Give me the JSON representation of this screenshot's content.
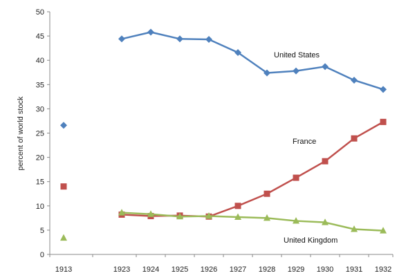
{
  "chart_data": {
    "type": "line",
    "ylabel": "percent of world stock",
    "ylim": [
      0,
      50
    ],
    "y_ticks": [
      0,
      5,
      10,
      15,
      20,
      25,
      30,
      35,
      40,
      45,
      50
    ],
    "x_ticks": [
      "1913",
      "1923",
      "1924",
      "1925",
      "1926",
      "1927",
      "1928",
      "1929",
      "1930",
      "1931",
      "1932"
    ],
    "grid": false,
    "series": [
      {
        "name": "United States",
        "color": "#4f81bd",
        "marker": "diamond",
        "isolated": {
          "x": "1913",
          "y": 26.6
        },
        "x": [
          "1923",
          "1924",
          "1925",
          "1926",
          "1927",
          "1928",
          "1929",
          "1930",
          "1931",
          "1932"
        ],
        "values": [
          44.4,
          45.8,
          44.4,
          44.3,
          41.6,
          37.4,
          37.8,
          38.7,
          35.9,
          34.0
        ]
      },
      {
        "name": "France",
        "color": "#c0504d",
        "marker": "square",
        "isolated": {
          "x": "1913",
          "y": 14.0
        },
        "x": [
          "1923",
          "1924",
          "1925",
          "1926",
          "1927",
          "1928",
          "1929",
          "1930",
          "1931",
          "1932"
        ],
        "values": [
          8.2,
          7.9,
          8.0,
          7.8,
          10.0,
          12.5,
          15.8,
          19.2,
          23.9,
          27.3
        ]
      },
      {
        "name": "United Kingdom",
        "color": "#9bbb59",
        "marker": "triangle",
        "isolated": {
          "x": "1913",
          "y": 3.4
        },
        "x": [
          "1923",
          "1924",
          "1925",
          "1926",
          "1927",
          "1928",
          "1929",
          "1930",
          "1931",
          "1932"
        ],
        "values": [
          8.6,
          8.3,
          7.8,
          7.9,
          7.7,
          7.5,
          6.9,
          6.6,
          5.2,
          4.9
        ]
      }
    ]
  }
}
